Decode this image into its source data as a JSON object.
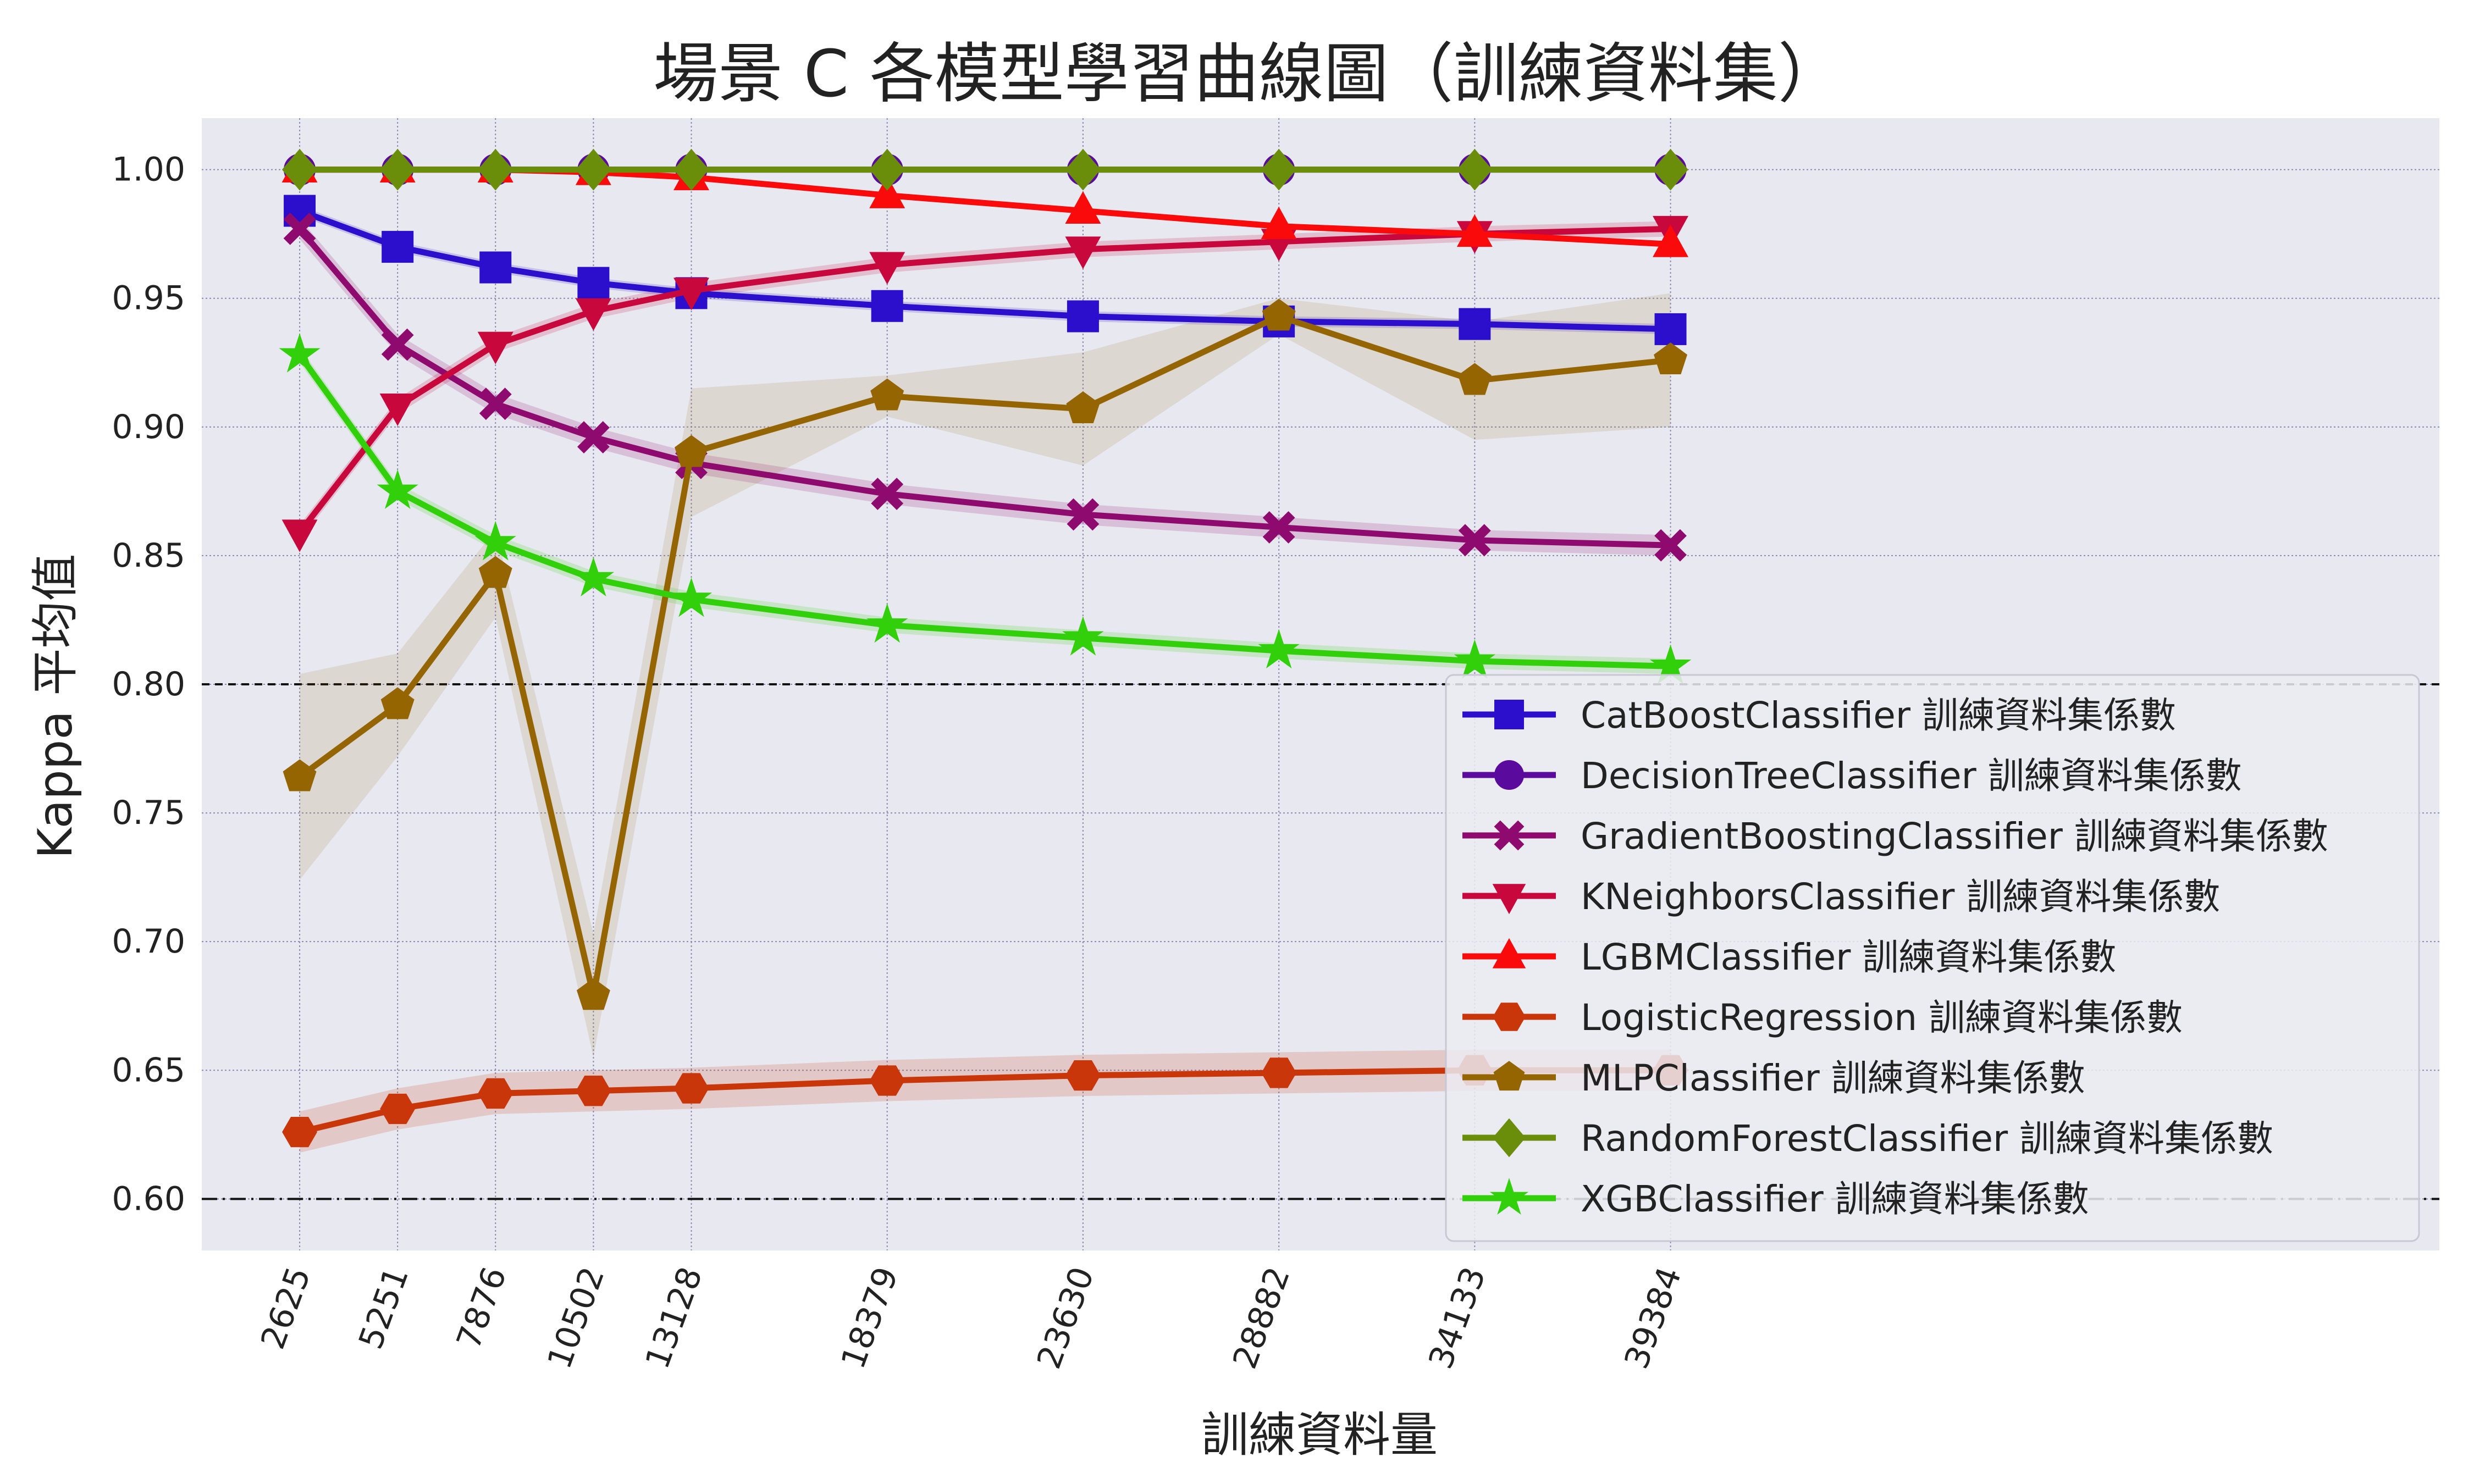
{
  "chart_data": {
    "type": "line",
    "title": "場景 C 各模型學習曲線圖（訓練資料集）",
    "xlabel": "訓練資料量",
    "ylabel": "Kappa 平均值",
    "x": [
      2625,
      5251,
      7876,
      10502,
      13128,
      18379,
      23630,
      28882,
      34133,
      39384
    ],
    "x_tick_labels": [
      "2625",
      "5251",
      "7876",
      "10502",
      "13128",
      "18379",
      "23630",
      "28882",
      "34133",
      "39384"
    ],
    "xlim": [
      0,
      60000
    ],
    "ylim": [
      0.58,
      1.02
    ],
    "y_ticks": [
      0.6,
      0.65,
      0.7,
      0.75,
      0.8,
      0.85,
      0.9,
      0.95,
      1.0
    ],
    "y_tick_labels": [
      "0.60",
      "0.65",
      "0.70",
      "0.75",
      "0.80",
      "0.85",
      "0.90",
      "0.95",
      "1.00"
    ],
    "grid": true,
    "legend_position": "lower-right",
    "reference_lines": [
      {
        "y": 0.8,
        "style": "dashed"
      },
      {
        "y": 0.6,
        "style": "dashdot"
      }
    ],
    "series": [
      {
        "name": "CatBoostClassifier 訓練資料集係數",
        "color": "#2b0fcc",
        "marker": "square",
        "values": [
          0.984,
          0.97,
          0.962,
          0.956,
          0.952,
          0.947,
          0.943,
          0.941,
          0.94,
          0.938
        ],
        "band": 0.002
      },
      {
        "name": "DecisionTreeClassifier 訓練資料集係數",
        "color": "#5b0a9e",
        "marker": "circle",
        "values": [
          1.0,
          1.0,
          1.0,
          1.0,
          1.0,
          1.0,
          1.0,
          1.0,
          1.0,
          1.0
        ],
        "band": 0
      },
      {
        "name": "GradientBoostingClassifier 訓練資料集係數",
        "color": "#8f0a6e",
        "marker": "x",
        "values": [
          0.977,
          0.932,
          0.909,
          0.896,
          0.886,
          0.874,
          0.866,
          0.861,
          0.856,
          0.854
        ],
        "band": 0.004
      },
      {
        "name": "KNeighborsClassifier 訓練資料集係數",
        "color": "#c8083c",
        "marker": "triangle-down",
        "values": [
          0.859,
          0.908,
          0.932,
          0.945,
          0.953,
          0.963,
          0.969,
          0.972,
          0.975,
          0.977
        ],
        "band": 0.003
      },
      {
        "name": "LGBMClassifier 訓練資料集係數",
        "color": "#fa0a0a",
        "marker": "triangle-up",
        "values": [
          1.0,
          1.0,
          1.0,
          0.999,
          0.997,
          0.99,
          0.984,
          0.978,
          0.975,
          0.971
        ],
        "band": 0.001
      },
      {
        "name": "LogisticRegression 訓練資料集係數",
        "color": "#c8360a",
        "marker": "hexagon",
        "values": [
          0.626,
          0.635,
          0.641,
          0.642,
          0.643,
          0.646,
          0.648,
          0.649,
          0.65,
          0.65
        ],
        "band": 0.008
      },
      {
        "name": "MLPClassifier 訓練資料集係數",
        "color": "#946500",
        "marker": "pentagon",
        "values": [
          0.764,
          0.792,
          0.843,
          0.679,
          0.89,
          0.912,
          0.907,
          0.943,
          0.918,
          0.926
        ],
        "band_low": [
          0.724,
          0.772,
          0.826,
          0.655,
          0.865,
          0.904,
          0.885,
          0.936,
          0.895,
          0.9
        ],
        "band_high": [
          0.804,
          0.812,
          0.86,
          0.703,
          0.915,
          0.92,
          0.929,
          0.95,
          0.941,
          0.952
        ]
      },
      {
        "name": "RandomForestClassifier 訓練資料集係數",
        "color": "#6a8e0a",
        "marker": "diamond",
        "values": [
          1.0,
          1.0,
          1.0,
          1.0,
          1.0,
          1.0,
          1.0,
          1.0,
          1.0,
          1.0
        ],
        "band": 0
      },
      {
        "name": "XGBClassifier 訓練資料集係數",
        "color": "#32d00a",
        "marker": "star",
        "values": [
          0.928,
          0.875,
          0.855,
          0.841,
          0.833,
          0.823,
          0.818,
          0.813,
          0.809,
          0.807
        ],
        "band": 0.003
      }
    ]
  }
}
